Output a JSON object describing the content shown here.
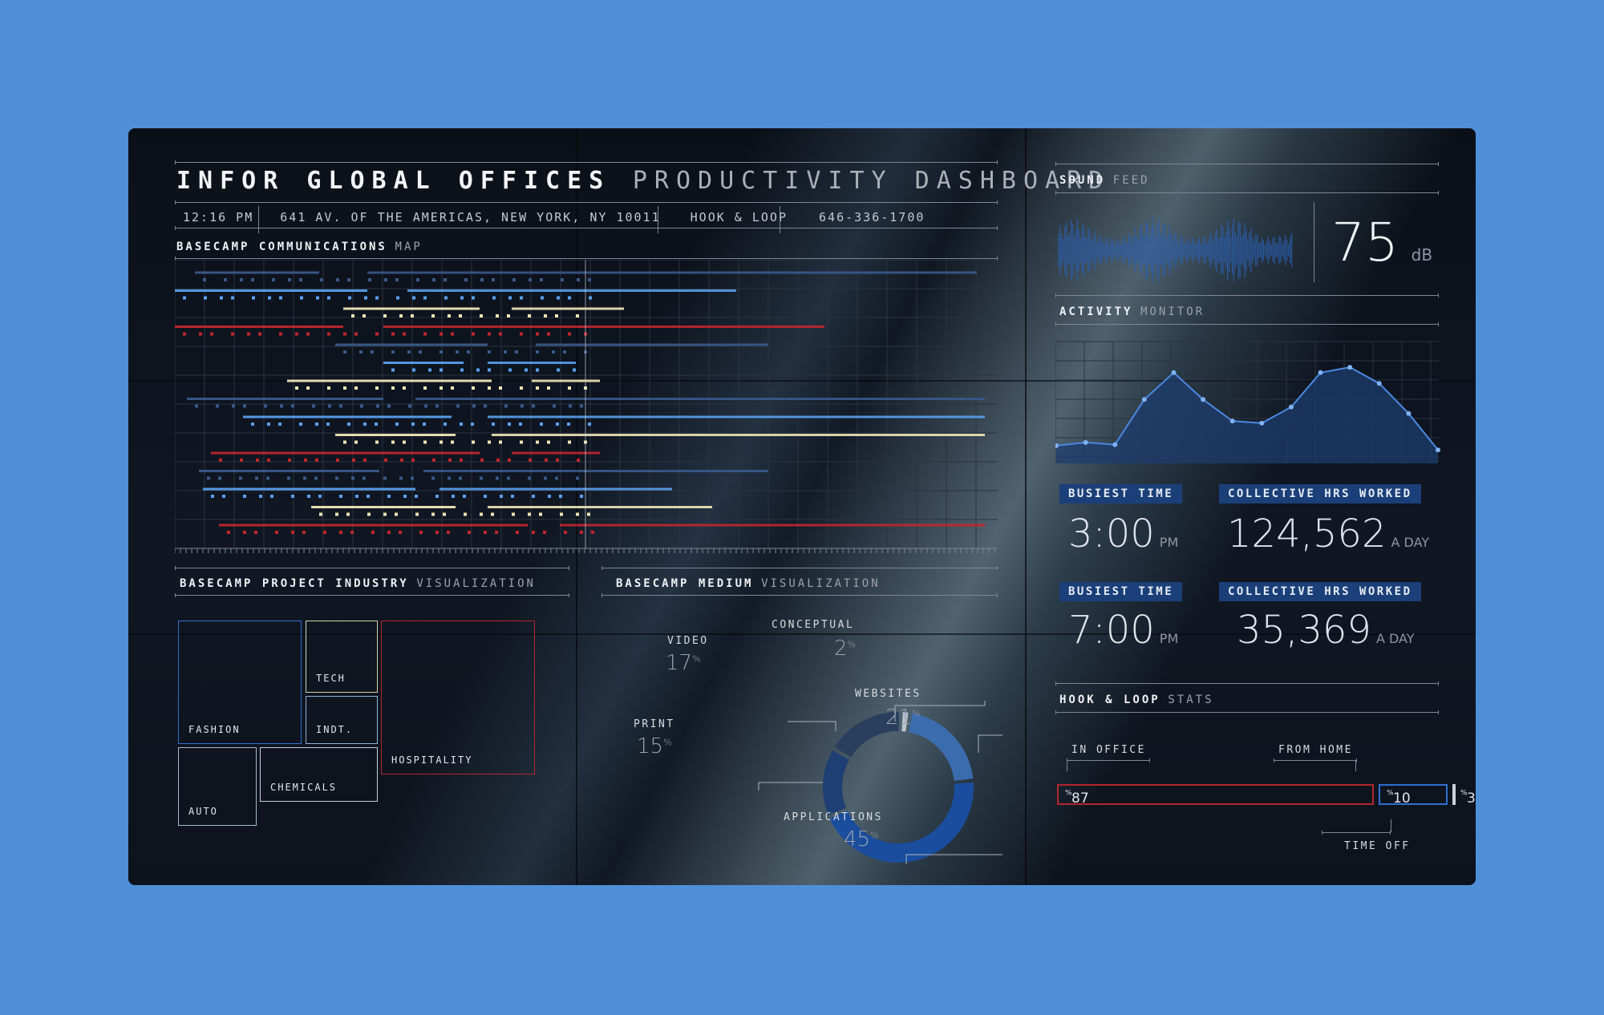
{
  "header": {
    "title_main": "INFOR GLOBAL OFFICES",
    "title_sub": "PRODUCTIVITY DASHBOARD",
    "time": "12:16 PM",
    "address": "641 AV. OF THE AMERICAS, NEW YORK, NY 10011",
    "company": "HOOK & LOOP",
    "phone": "646-336-1700"
  },
  "comm_map": {
    "label_bold": "BASECAMP COMMUNICATIONS",
    "label_light": "MAP",
    "colors": {
      "blue": "#5aa0ee",
      "navy": "#3a5a8a",
      "cream": "#efe7b8",
      "red": "#c2262e"
    }
  },
  "industry": {
    "label_bold": "BASECAMP PROJECT INDUSTRY",
    "label_light": "VISUALIZATION",
    "cells": [
      {
        "name": "FASHION",
        "color": "#2f6fd0"
      },
      {
        "name": "TECH",
        "color": "#d9d2a8"
      },
      {
        "name": "INDT.",
        "color": "#8fb3d8"
      },
      {
        "name": "HOSPITALITY",
        "color": "#b3262e"
      },
      {
        "name": "AUTO",
        "color": "#aab8cc"
      },
      {
        "name": "CHEMICALS",
        "color": "#c9d0da"
      }
    ]
  },
  "medium": {
    "label_bold": "BASECAMP MEDIUM",
    "label_light": "VISUALIZATION",
    "segments": [
      {
        "name": "CONCEPTUAL",
        "value": 2,
        "color": "#b8c2cf"
      },
      {
        "name": "WEBSITES",
        "value": 21,
        "color": "#3b6cae"
      },
      {
        "name": "APPLICATIONS",
        "value": 45,
        "color": "#1a4d9e"
      },
      {
        "name": "PRINT",
        "value": 15,
        "color": "#1e3f73"
      },
      {
        "name": "VIDEO",
        "value": 17,
        "color": "#2a3f5e"
      }
    ],
    "pct_sign": "%"
  },
  "sound": {
    "label_bold": "SOUND",
    "label_light": "FEED",
    "value": "75",
    "unit": "dB"
  },
  "activity": {
    "label_bold": "ACTIVITY",
    "label_light": "MONITOR"
  },
  "stats": [
    {
      "badge": "BUSIEST TIME",
      "value": "3:00",
      "unit": "PM"
    },
    {
      "badge": "COLLECTIVE HRS WORKED",
      "value": "124,562",
      "unit": "A DAY"
    },
    {
      "badge": "BUSIEST TIME",
      "value": "7:00",
      "unit": "PM"
    },
    {
      "badge": "COLLECTIVE HRS WORKED",
      "value": "35,369",
      "unit": "A DAY"
    }
  ],
  "hl_stats": {
    "label_bold": "HOOK & LOOP",
    "label_light": "STATS",
    "in_office_label": "IN OFFICE",
    "from_home_label": "FROM HOME",
    "time_off_label": "TIME OFF",
    "in_office": {
      "value": "87",
      "fraction": 0.87,
      "color": "#b3262e"
    },
    "from_home": {
      "value": "10",
      "fraction": 0.1,
      "color": "#2f6fd0"
    },
    "time_off": {
      "value": "3",
      "fraction": 0.03,
      "color": "#c9d0da"
    },
    "pct_sign": "%"
  }
}
